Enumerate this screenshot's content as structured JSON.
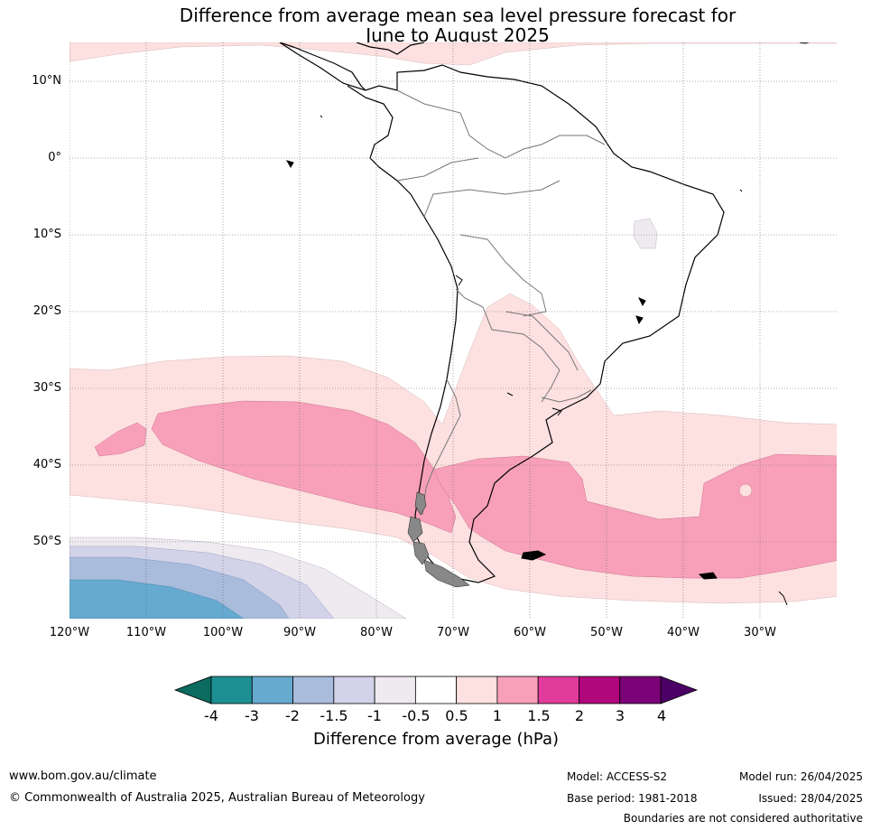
{
  "title": {
    "line1": "Difference from average mean sea level pressure forecast for",
    "line2": "June to August 2025"
  },
  "map": {
    "lat_labels": [
      "10°N",
      "0°",
      "10°S",
      "20°S",
      "30°S",
      "40°S",
      "50°S"
    ],
    "lon_labels": [
      "120°W",
      "110°W",
      "100°W",
      "90°W",
      "80°W",
      "70°W",
      "60°W",
      "50°W",
      "40°W",
      "30°W"
    ]
  },
  "colorbar": {
    "ticks": [
      "-4",
      "-3",
      "-2",
      "-1.5",
      "-1",
      "-0.5",
      "0.5",
      "1",
      "1.5",
      "2",
      "3",
      "4"
    ],
    "colors": [
      "#1e9093",
      "#66aad0",
      "#a9bcdc",
      "#d2d3e8",
      "#eeeaf0",
      "#ffffff",
      "#fde0e0",
      "#f8a0ba",
      "#e13b9b",
      "#b0077c",
      "#7b0176"
    ],
    "under_color": "#0a6b5e",
    "over_color": "#4b0065",
    "label": "Difference from average (hPa)"
  },
  "footer": {
    "website": "www.bom.gov.au/climate",
    "copyright": "© Commonwealth of Australia 2025, Australian Bureau of Meteorology",
    "model": "Model: ACCESS-S2",
    "base_period": "Base period: 1981-2018",
    "model_run": "Model run: 26/04/2025",
    "issued": "Issued: 28/04/2025",
    "disclaimer": "Boundaries are not considered authoritative"
  }
}
